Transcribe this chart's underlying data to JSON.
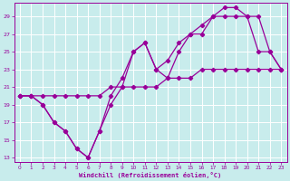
{
  "xlabel": "Windchill (Refroidissement éolien,°C)",
  "bg_color": "#c8ecec",
  "grid_color": "#ffffff",
  "line_color": "#990099",
  "xlim": [
    -0.5,
    23.5
  ],
  "ylim": [
    12.5,
    30.5
  ],
  "xticks": [
    0,
    1,
    2,
    3,
    4,
    5,
    6,
    7,
    8,
    9,
    10,
    11,
    12,
    13,
    14,
    15,
    16,
    17,
    18,
    19,
    20,
    21,
    22,
    23
  ],
  "yticks": [
    13,
    15,
    17,
    19,
    21,
    23,
    25,
    27,
    29
  ],
  "series1_x": [
    0,
    1,
    2,
    3,
    4,
    5,
    6,
    7,
    8,
    9,
    10,
    11,
    12,
    13,
    14,
    15,
    16,
    17,
    18,
    19,
    20,
    21,
    22,
    23
  ],
  "series1_y": [
    20,
    20,
    20,
    20,
    20,
    20,
    20,
    20,
    21,
    21,
    21,
    21,
    21,
    22,
    22,
    22,
    23,
    23,
    23,
    23,
    23,
    23,
    23,
    23
  ],
  "series2_x": [
    0,
    1,
    2,
    3,
    4,
    5,
    6,
    7,
    8,
    9,
    10,
    11,
    12,
    13,
    14,
    15,
    16,
    17,
    18,
    19,
    20,
    21,
    22,
    23
  ],
  "series2_y": [
    20,
    20,
    19,
    17,
    16,
    14,
    13,
    16,
    19,
    21,
    25,
    26,
    23,
    24,
    26,
    27,
    28,
    29,
    30,
    30,
    29,
    29,
    25,
    23
  ],
  "series3_x": [
    0,
    1,
    2,
    3,
    4,
    5,
    6,
    7,
    8,
    9,
    10,
    11,
    12,
    13,
    14,
    15,
    16,
    17,
    18,
    19,
    20,
    21,
    22,
    23
  ],
  "series3_y": [
    20,
    20,
    19,
    17,
    16,
    14,
    13,
    16,
    20,
    22,
    25,
    26,
    23,
    22,
    25,
    27,
    27,
    29,
    29,
    29,
    29,
    25,
    25,
    23
  ]
}
